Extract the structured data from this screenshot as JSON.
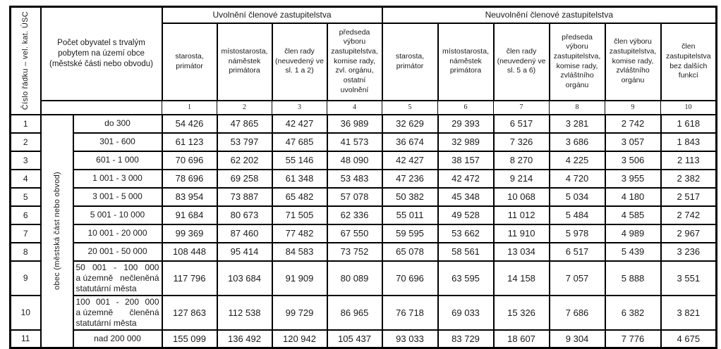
{
  "page": {
    "background": "#ffffff",
    "text_color": "#1a1a1a",
    "border_color": "#000000"
  },
  "table": {
    "corner_header": "Číslo řádku – vel. kat. ÚSC",
    "population_header": "Počet obyvatel s trvalým pobytem na území obce (městské části nebo obvodu)",
    "group_released": "Uvolnění členové zastupitelstva",
    "group_unreleased": "Neuvolnění členové zastupitelstva",
    "row_group_label": "obec (městská část nebo obvod)",
    "column_headers": [
      {
        "num": "1",
        "label": "starosta, primátor"
      },
      {
        "num": "2",
        "label": "místostarosta, náměstek primátora"
      },
      {
        "num": "3",
        "label": "člen rady (neuvedený ve sl. 1 a 2)"
      },
      {
        "num": "4",
        "label": "předseda výboru zastupitelstva, komise rady, zvl. orgánu, ostatní uvolnění"
      },
      {
        "num": "5",
        "label": "starosta, primátor"
      },
      {
        "num": "6",
        "label": "místostarosta, náměstek primátora"
      },
      {
        "num": "7",
        "label": "člen rady (neuvedený ve sl. 5 a 6)"
      },
      {
        "num": "8",
        "label": "předseda výboru zastupitelstva, komise rady, zvláštního orgánu"
      },
      {
        "num": "9",
        "label": "člen výboru zastupitelstva, komise rady, zvláštního orgánu"
      },
      {
        "num": "10",
        "label": "člen zastupitelstva bez dalších funkcí"
      }
    ],
    "rows": [
      {
        "num": "1",
        "range": "do 300",
        "values": [
          "54 426",
          "47 865",
          "42 427",
          "36 989",
          "32 629",
          "29 393",
          "6 517",
          "3 281",
          "2 742",
          "1 618"
        ]
      },
      {
        "num": "2",
        "range": "301 - 600",
        "values": [
          "61 123",
          "53 797",
          "47 685",
          "41 573",
          "36 674",
          "32 989",
          "7 326",
          "3 686",
          "3 057",
          "1 843"
        ]
      },
      {
        "num": "3",
        "range": "601 - 1 000",
        "values": [
          "70 696",
          "62 202",
          "55 146",
          "48 090",
          "42 427",
          "38 157",
          "8 270",
          "4 225",
          "3 506",
          "2 113"
        ]
      },
      {
        "num": "4",
        "range": "1 001 - 3 000",
        "values": [
          "78 696",
          "69 258",
          "61 348",
          "53 483",
          "47 236",
          "42 472",
          "9 214",
          "4 720",
          "3 955",
          "2 382"
        ]
      },
      {
        "num": "5",
        "range": "3 001 - 5 000",
        "values": [
          "83 954",
          "73 887",
          "65 482",
          "57 078",
          "50 382",
          "45 348",
          "10 068",
          "5 034",
          "4 180",
          "2 517"
        ]
      },
      {
        "num": "6",
        "range": "5 001 - 10 000",
        "values": [
          "91 684",
          "80 673",
          "71 505",
          "62 336",
          "55 011",
          "49 528",
          "11 012",
          "5 484",
          "4 585",
          "2 742"
        ]
      },
      {
        "num": "7",
        "range": "10 001 - 20 000",
        "values": [
          "99 369",
          "87 460",
          "77 482",
          "67 550",
          "59 595",
          "53 662",
          "11 910",
          "5 978",
          "4 989",
          "2 967"
        ]
      },
      {
        "num": "8",
        "range": "20 001 - 50 000",
        "values": [
          "108 448",
          "95 414",
          "84 583",
          "73 752",
          "65 078",
          "58 561",
          "13 034",
          "6 517",
          "5 439",
          "3 236"
        ]
      },
      {
        "num": "9",
        "range_lines": [
          [
            "50",
            "001",
            "-",
            "100",
            "000"
          ],
          [
            "a územně",
            "nečleněná"
          ],
          [
            "statutární města"
          ]
        ],
        "values": [
          "117 796",
          "103 684",
          "91 909",
          "80 089",
          "70 696",
          "63 595",
          "14 158",
          "7 057",
          "5 888",
          "3 551"
        ]
      },
      {
        "num": "10",
        "range_lines": [
          [
            "100",
            "001",
            "-",
            "200",
            "000"
          ],
          [
            "a územně",
            "členěná"
          ],
          [
            "statutární města"
          ]
        ],
        "values": [
          "127 863",
          "112 538",
          "99 729",
          "86 965",
          "76 718",
          "69 033",
          "15 326",
          "7 686",
          "6 382",
          "3 821"
        ]
      },
      {
        "num": "11",
        "range": "nad 200 000",
        "values": [
          "155 099",
          "136 492",
          "120 942",
          "105 437",
          "93 033",
          "83 729",
          "18 607",
          "9 304",
          "7 776",
          "4 675"
        ]
      }
    ]
  }
}
